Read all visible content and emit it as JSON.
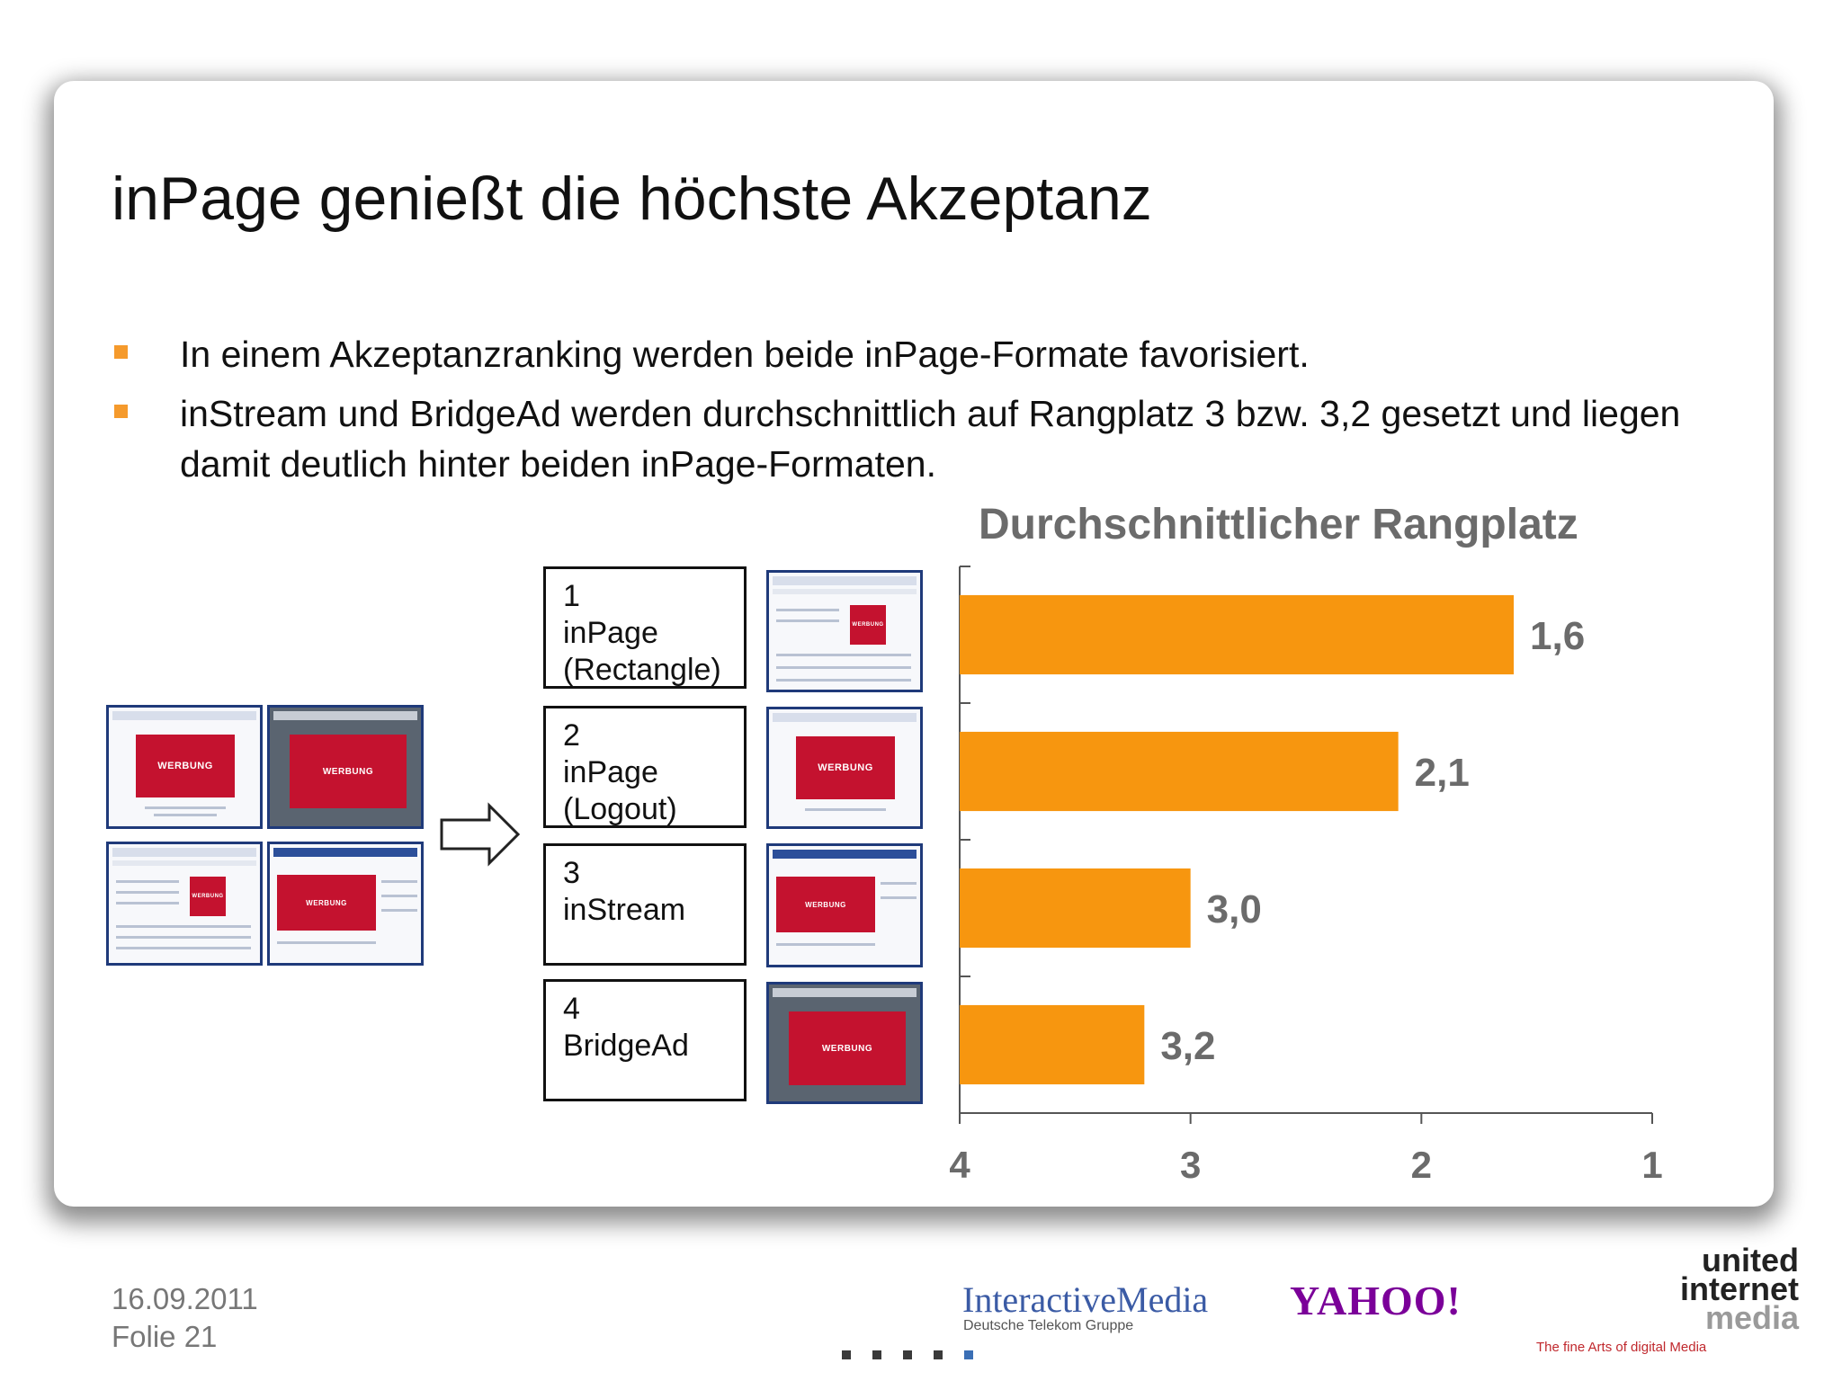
{
  "slide": {
    "title": "inPage genießt die höchste Akzeptanz",
    "bullets": [
      "In einem Akzeptanzranking werden beide inPage-Formate favorisiert.",
      "inStream und BridgeAd werden durchschnittlich auf Rangplatz 3 bzw. 3,2 gesetzt und liegen damit deutlich hinter beiden inPage-Formaten."
    ],
    "ad_label": "WERBUNG",
    "ranking": [
      {
        "number": "1",
        "lines": [
          "inPage",
          "(Rectangle)"
        ]
      },
      {
        "number": "2",
        "lines": [
          "inPage",
          "(Logout)"
        ]
      },
      {
        "number": "3",
        "lines": [
          "inStream"
        ]
      },
      {
        "number": "4",
        "lines": [
          "BridgeAd"
        ]
      }
    ]
  },
  "chart_data": {
    "type": "bar",
    "orientation": "horizontal",
    "title": "Durchschnittlicher Rangplatz",
    "categories": [
      "inPage (Rectangle)",
      "inPage (Logout)",
      "inStream",
      "BridgeAd"
    ],
    "values": [
      1.6,
      2.1,
      3.0,
      3.2
    ],
    "data_labels": [
      "1,6",
      "2,1",
      "3,0",
      "3,2"
    ],
    "xlim": [
      4,
      1
    ],
    "x_reversed": true,
    "x_ticks": [
      4,
      3,
      2,
      1
    ],
    "x_tick_labels": [
      "4",
      "3",
      "2",
      "1"
    ],
    "bar_color": "#f7960f",
    "label_color": "#6b6b6b",
    "grid": false
  },
  "footer": {
    "date": "16.09.2011",
    "slide_number": "Folie 21",
    "logo_interactive_media": "InteractiveMedia",
    "logo_interactive_media_sub": "Deutsche Telekom Gruppe",
    "logo_yahoo": "YAHOO!",
    "logo_uim": [
      "united",
      "internet",
      "media"
    ],
    "logo_uim_tagline": "The fine Arts of digital Media"
  }
}
